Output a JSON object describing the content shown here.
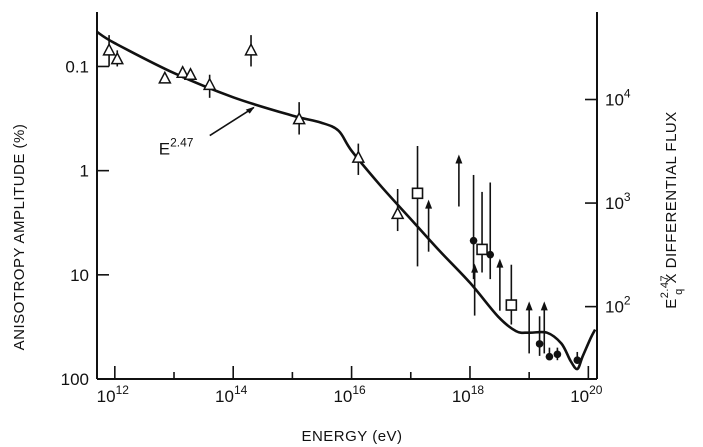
{
  "chart_data": {
    "type": "scatter",
    "xlabel": "ENERGY (eV)",
    "ylabel_left": "ANISOTROPY AMPLITUDE (%)",
    "ylabel_right_main": "E",
    "ylabel_right_sup": "2.47",
    "ylabel_right_sub": "q",
    "ylabel_right_rest": " X DIFFERENTIAL FLUX",
    "x_scale": "log",
    "y_left_scale": "log, inverted",
    "xlim": [
      500000000000.0,
      1.4e+20
    ],
    "ylim_left": [
      100,
      0.03
    ],
    "ylim_right": [
      20,
      70000
    ],
    "x_ticks": [
      {
        "value": 1000000000000.0,
        "base": "10",
        "exp": "12"
      },
      {
        "value": 100000000000000.0,
        "base": "10",
        "exp": "14"
      },
      {
        "value": 1e+16,
        "base": "10",
        "exp": "16"
      },
      {
        "value": 1e+18,
        "base": "10",
        "exp": "18"
      },
      {
        "value": 1e+20,
        "base": "10",
        "exp": "20"
      }
    ],
    "y_left_ticks": [
      {
        "value": 0.1,
        "label": "0.1"
      },
      {
        "value": 1,
        "label": "1"
      },
      {
        "value": 10,
        "label": "10"
      },
      {
        "value": 100,
        "label": "100"
      }
    ],
    "y_right_ticks": [
      {
        "value": 10000,
        "base": "10",
        "exp": "4"
      },
      {
        "value": 1000,
        "base": "10",
        "exp": "3"
      },
      {
        "value": 100,
        "base": "10",
        "exp": "2"
      }
    ],
    "annotation": {
      "base": "E",
      "exp": "2.47",
      "points_to_x": 250000000000000.0
    },
    "flux_curve_right_axis": [
      {
        "x": 500000000000.0,
        "y": 45000
      },
      {
        "x": 1000000000000.0,
        "y": 35000
      },
      {
        "x": 10000000000000.0,
        "y": 18000
      },
      {
        "x": 100000000000000.0,
        "y": 10500
      },
      {
        "x": 1000000000000000.0,
        "y": 7000
      },
      {
        "x": 3000000000000000.0,
        "y": 6000
      },
      {
        "x": 6000000000000000.0,
        "y": 5000
      },
      {
        "x": 1e+16,
        "y": 3200
      },
      {
        "x": 3e+16,
        "y": 1500
      },
      {
        "x": 1e+17,
        "y": 700
      },
      {
        "x": 3e+17,
        "y": 350
      },
      {
        "x": 1e+18,
        "y": 170
      },
      {
        "x": 3e+18,
        "y": 80
      },
      {
        "x": 6e+18,
        "y": 58
      },
      {
        "x": 1e+19,
        "y": 56
      },
      {
        "x": 2e+19,
        "y": 56
      },
      {
        "x": 3.5e+19,
        "y": 44
      },
      {
        "x": 5e+19,
        "y": 30
      },
      {
        "x": 6.5e+19,
        "y": 25
      },
      {
        "x": 8e+19,
        "y": 33
      },
      {
        "x": 1.1e+20,
        "y": 50
      },
      {
        "x": 1.3e+20,
        "y": 60
      }
    ],
    "series": [
      {
        "marker": "open-triangle",
        "points": [
          {
            "x": 800000000000.0,
            "y": 0.07,
            "lo": 0.05,
            "hi": 0.1
          },
          {
            "x": 1100000000000.0,
            "y": 0.085,
            "lo": 0.07,
            "hi": 0.1
          },
          {
            "x": 7000000000000.0,
            "y": 0.13,
            "lo": 0.12,
            "hi": 0.14
          },
          {
            "x": 14000000000000.0,
            "y": 0.115,
            "lo": 0.1,
            "hi": 0.13
          },
          {
            "x": 19000000000000.0,
            "y": 0.12,
            "lo": 0.11,
            "hi": 0.13
          },
          {
            "x": 40000000000000.0,
            "y": 0.15,
            "lo": 0.12,
            "hi": 0.2
          },
          {
            "x": 200000000000000.0,
            "y": 0.07,
            "lo": 0.05,
            "hi": 0.1
          },
          {
            "x": 1300000000000000.0,
            "y": 0.32,
            "lo": 0.22,
            "hi": 0.45
          },
          {
            "x": 1.3e+16,
            "y": 0.75,
            "lo": 0.55,
            "hi": 1.1
          },
          {
            "x": 6e+16,
            "y": 2.6,
            "lo": 1.5,
            "hi": 3.8
          }
        ]
      },
      {
        "marker": "open-square",
        "points": [
          {
            "x": 1.3e+17,
            "y": 1.65,
            "lo": 0.58,
            "hi": 8.3
          },
          {
            "x": 1.6e+18,
            "y": 5.7,
            "lo": 1.6,
            "hi": 9.5
          },
          {
            "x": 5e+18,
            "y": 19.5,
            "lo": 8,
            "hi": 30
          }
        ]
      },
      {
        "marker": "filled-circle",
        "points": [
          {
            "x": 1.15e+18,
            "y": 4.7,
            "lo": 1.1,
            "hi": 11
          },
          {
            "x": 2.2e+18,
            "y": 6.4,
            "lo": 1.3,
            "hi": 11
          },
          {
            "x": 1.5e+19,
            "y": 46,
            "lo": 25,
            "hi": 60
          },
          {
            "x": 2.2e+19,
            "y": 61,
            "lo": 50,
            "hi": 66
          },
          {
            "x": 3e+19,
            "y": 58,
            "lo": 50,
            "hi": 66
          },
          {
            "x": 6.5e+19,
            "y": 66,
            "lo": 55,
            "hi": 70
          }
        ]
      },
      {
        "marker": "upper-limit-arrow",
        "points": [
          {
            "x": 2e+17,
            "y": 1.9
          },
          {
            "x": 6.5e+17,
            "y": 0.7
          },
          {
            "x": 1.2e+18,
            "y": 7.8
          },
          {
            "x": 3.2e+18,
            "y": 7
          },
          {
            "x": 1e+19,
            "y": 18
          },
          {
            "x": 1.8e+19,
            "y": 18
          }
        ]
      }
    ]
  }
}
